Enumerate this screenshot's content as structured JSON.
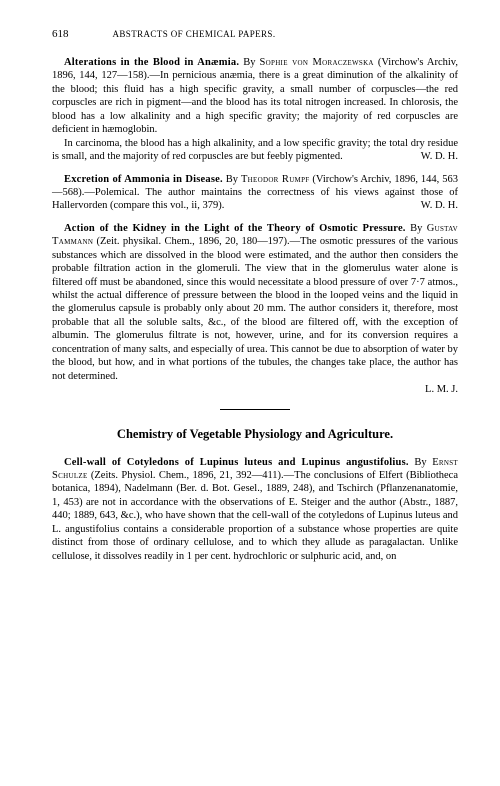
{
  "header": {
    "page_number": "618",
    "running_title": "ABSTRACTS OF CHEMICAL PAPERS."
  },
  "abstracts": [
    {
      "title": "Alterations in the Blood in Anæmia.",
      "author_prefix": "By ",
      "author": "Sophie von Moraczewska",
      "citation": " (Virchow's Archiv, 1896, 144, 127—158).—In pernicious anæmia, there is a great diminution of the alkalinity of the blood; this fluid has a high specific gravity, a small number of corpuscles—the red corpuscles are rich in pigment—and the blood has its total nitrogen increased. In chlorosis, the blood has a low alkalinity and a high specific gravity; the majority of red corpuscles are deficient in hæmoglobin.",
      "para2": "In carcinoma, the blood has a high alkalinity, and a low specific gravity; the total dry residue is small, and the majority of red corpuscles are but feebly pigmented.",
      "signature": "W. D. H."
    },
    {
      "title": "Excretion of Ammonia in Disease.",
      "author_prefix": "By ",
      "author": "Theodor Rumpf",
      "citation": " (Virchow's Archiv, 1896, 144, 563—568).—Polemical. The author maintains the correctness of his views against those of Hallervorden (compare this vol., ii, 379).",
      "signature": "W. D. H."
    },
    {
      "title": "Action of the Kidney in the Light of the Theory of Osmotic Pressure.",
      "author_prefix": "By ",
      "author": "Gustav Tammann",
      "citation": " (Zeit. physikal. Chem., 1896, 20, 180—197).—The osmotic pressures of the various substances which are dissolved in the blood were estimated, and the author then considers the probable filtration action in the glomeruli. The view that in the glomerulus water alone is filtered off must be abandoned, since this would necessitate a blood pressure of over 7·7 atmos., whilst the actual difference of pressure between the blood in the looped veins and the liquid in the glomerulus capsule is probably only about 20 mm. The author considers it, therefore, most probable that all the soluble salts, &c., of the blood are filtered off, with the exception of albumin. The glomerulus filtrate is not, however, urine, and for its conversion requires a concentration of many salts, and especially of urea. This cannot be due to absorption of water by the blood, but how, and in what portions of the tubules, the changes take place, the author has not determined.",
      "signature": "L. M. J."
    }
  ],
  "section_heading": "Chemistry of Vegetable Physiology and Agriculture.",
  "abstract4": {
    "title": "Cell-wall of Cotyledons of Lupinus luteus and Lupinus angustifolius.",
    "author_prefix": "By ",
    "author": "Ernst Schulze",
    "citation": " (Zeits. Physiol. Chem., 1896, 21, 392—411).—The conclusions of Elfert (Bibliotheca botanica, 1894), Nadelmann (Ber. d. Bot. Gesel., 1889, 248), and Tschirch (Pflanzenanatomie, 1, 453) are not in accordance with the observations of E. Steiger and the author (Abstr., 1887, 440; 1889, 643, &c.), who have shown that the cell-wall of the cotyledons of Lupinus luteus and L. angustifolius contains a considerable proportion of a substance whose properties are quite distinct from those of ordinary cellulose, and to which they allude as paragalactan. Unlike cellulose, it dissolves readily in 1 per cent. hydrochloric or sulphuric acid, and, on"
  }
}
